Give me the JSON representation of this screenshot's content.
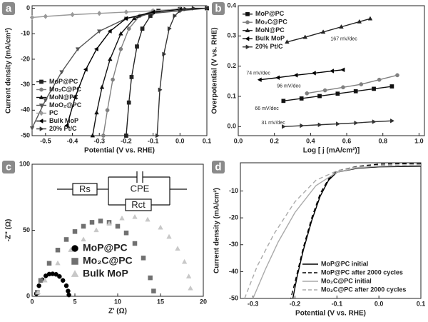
{
  "chart_data": [
    {
      "type": "line",
      "panel_label": "a",
      "x_label": "Potential (V vs. RHE)",
      "y_label": "Current density (mA/cm²)",
      "xlim": [
        -0.55,
        0.1
      ],
      "xticks": [
        -0.5,
        -0.4,
        -0.3,
        -0.2,
        -0.1,
        {
          "value": 0,
          "label": "0.0"
        },
        0.1
      ],
      "ylim": [
        -50,
        1
      ],
      "yticks": [
        0,
        -10,
        -20,
        -30,
        -40,
        -50
      ],
      "legend": "lower-left",
      "series": [
        {
          "name": "MoP@PC",
          "color": "#222222",
          "marker": "square",
          "x": [
            0.1,
            0,
            -0.08,
            -0.11,
            -0.14,
            -0.16,
            -0.18,
            -0.19,
            -0.2
          ],
          "values": [
            0,
            -0.3,
            -1,
            -3,
            -8,
            -15,
            -27,
            -37,
            -50
          ]
        },
        {
          "name": "Mo₂C@PC",
          "color": "#808080",
          "marker": "circle",
          "x": [
            0.1,
            0,
            -0.1,
            -0.15,
            -0.19,
            -0.22,
            -0.25,
            -0.27,
            -0.285
          ],
          "values": [
            0,
            -0.3,
            -1,
            -3,
            -8,
            -16,
            -28,
            -40,
            -50
          ]
        },
        {
          "name": "MoN@PC",
          "color": "#111111",
          "marker": "triangle-up",
          "x": [
            0.1,
            0,
            -0.1,
            -0.17,
            -0.22,
            -0.26,
            -0.29,
            -0.31,
            -0.325
          ],
          "values": [
            0,
            -0.3,
            -1.5,
            -4,
            -10,
            -20,
            -31,
            -41,
            -50
          ]
        },
        {
          "name": "MoO₂@PC",
          "color": "#555555",
          "marker": "triangle-down",
          "x": [
            0.1,
            0,
            -0.1,
            -0.2,
            -0.3,
            -0.38,
            -0.44,
            -0.5,
            -0.55
          ],
          "values": [
            0,
            -1,
            -2,
            -4,
            -9,
            -16,
            -25,
            -36,
            -47
          ]
        },
        {
          "name": "PC",
          "color": "#999999",
          "marker": "diamond",
          "x": [
            0.1,
            0,
            -0.1,
            -0.2,
            -0.3,
            -0.4,
            -0.5,
            -0.55
          ],
          "values": [
            0,
            -0.5,
            -1,
            -1.5,
            -2,
            -2.5,
            -3.2,
            -3.6
          ]
        },
        {
          "name": "Bulk MoP",
          "color": "#000000",
          "marker": "triangle-left",
          "x": [
            0.1,
            0,
            -0.1,
            -0.2,
            -0.26,
            -0.31,
            -0.35,
            -0.39,
            -0.42
          ],
          "values": [
            0,
            -0.5,
            -1.5,
            -4,
            -9,
            -16,
            -24,
            -35,
            -46
          ]
        },
        {
          "name": "20% Pt/C",
          "color": "#333333",
          "marker": "triangle-right",
          "x": [
            0.1,
            0.05,
            0.02,
            0,
            -0.02,
            -0.04,
            -0.06,
            -0.075,
            -0.085
          ],
          "values": [
            0,
            0,
            -0.3,
            -1,
            -3,
            -8,
            -18,
            -32,
            -50
          ]
        }
      ]
    },
    {
      "type": "line",
      "panel_label": "b",
      "x_label": "Log [ j (mA/cm²)]",
      "y_label": "Overpotential (V vs. RHE)",
      "xlim": [
        0,
        1.03
      ],
      "xticks": [
        {
          "value": 0,
          "label": "0.0"
        },
        0.2,
        0.4,
        0.6,
        0.8,
        {
          "value": 1,
          "label": "1.0"
        }
      ],
      "ylim": [
        -0.03,
        0.4
      ],
      "yticks": [
        {
          "value": 0,
          "label": "0.0"
        },
        0.1,
        0.2,
        0.3,
        0.4
      ],
      "legend": "upper-left",
      "series": [
        {
          "name": "MoP@PC",
          "color": "#111111",
          "marker": "square",
          "annotation": "66 mV/dec",
          "x": [
            0.25,
            0.35,
            0.45,
            0.55,
            0.65,
            0.75,
            0.85
          ],
          "values": [
            0.085,
            0.093,
            0.101,
            0.109,
            0.117,
            0.125,
            0.133
          ]
        },
        {
          "name": "Mo₂C@PC",
          "color": "#808080",
          "marker": "circle",
          "annotation": "96 mV/dec",
          "x": [
            0.38,
            0.48,
            0.58,
            0.68,
            0.78,
            0.88
          ],
          "values": [
            0.11,
            0.12,
            0.13,
            0.14,
            0.155,
            0.17
          ]
        },
        {
          "name": "MoN@PC",
          "color": "#222222",
          "marker": "triangle-up",
          "annotation": "167 mV/dec",
          "x": [
            0.27,
            0.37,
            0.47,
            0.57,
            0.67,
            0.73
          ],
          "values": [
            0.28,
            0.296,
            0.313,
            0.33,
            0.347,
            0.357
          ]
        },
        {
          "name": "Bulk MoP",
          "color": "#000000",
          "marker": "triangle-left",
          "annotation": "74 mV/dec",
          "x": [
            0.12,
            0.22,
            0.32,
            0.42,
            0.52,
            0.58
          ],
          "values": [
            0.155,
            0.162,
            0.17,
            0.177,
            0.184,
            0.188
          ]
        },
        {
          "name": "20% Pt/C",
          "color": "#333333",
          "marker": "triangle-right",
          "annotation": "31 mV/dec",
          "x": [
            0.25,
            0.35,
            0.45,
            0.55,
            0.65,
            0.75,
            0.85
          ],
          "values": [
            0,
            0.003,
            0.006,
            0.009,
            0.012,
            0.016,
            0.019
          ]
        }
      ]
    },
    {
      "type": "scatter",
      "panel_label": "c",
      "x_label": "Z' (Ω)",
      "y_label": "-Z'' (Ω)",
      "xlim": [
        0,
        20
      ],
      "xticks": [
        0,
        5,
        10,
        15,
        20
      ],
      "ylim": [
        0,
        100
      ],
      "yticks": [
        0,
        50,
        100
      ],
      "legend": "lower-left",
      "circuit": [
        "Rs",
        "CPE",
        "Rct"
      ],
      "series": [
        {
          "name": "MoP@PC",
          "color": "#000000",
          "marker": "circle",
          "x": [
            0.5,
            0.8,
            1.2,
            1.6,
            2.0,
            2.4,
            2.8,
            3.2,
            3.6,
            4.0,
            4.2,
            4.3
          ],
          "values": [
            2,
            8,
            12.5,
            15.5,
            16.8,
            17,
            16.6,
            15,
            12,
            8,
            4,
            1
          ]
        },
        {
          "name": "Mo₂C@PC",
          "color": "#707070",
          "marker": "square",
          "x": [
            0.6,
            1,
            2,
            3,
            4,
            5,
            6,
            7,
            8,
            9,
            10,
            11,
            12,
            13,
            13.8,
            14.2
          ],
          "values": [
            3,
            12,
            25,
            35,
            43,
            49,
            53,
            56,
            57,
            56,
            53,
            48,
            40,
            29,
            14,
            4
          ]
        },
        {
          "name": "Bulk  MoP",
          "color": "#c8c8c8",
          "marker": "triangle-up",
          "x": [
            0.7,
            1.5,
            3,
            4.5,
            6,
            7.5,
            9,
            10.5,
            12,
            13.5,
            15,
            16,
            17,
            17.8,
            18.3,
            18.5
          ],
          "values": [
            3,
            12,
            25,
            35,
            43,
            50,
            55,
            59,
            60,
            58,
            52,
            45,
            36,
            26,
            15,
            6
          ]
        }
      ]
    },
    {
      "type": "line",
      "panel_label": "d",
      "x_label": "Potential (V vs. RHE)",
      "y_label": "Current density (mA/cm²)",
      "xlim": [
        -0.33,
        0.1
      ],
      "xticks": [
        -0.3,
        -0.2,
        -0.1,
        {
          "value": 0,
          "label": "0.0"
        },
        0.1
      ],
      "ylim": [
        -50,
        0.5
      ],
      "yticks": [
        -10,
        -20,
        -30,
        -40,
        -50
      ],
      "legend": "lower-right",
      "series": [
        {
          "name": "MoP@PC initial",
          "color": "#000000",
          "dash": false,
          "x": [
            0.1,
            0,
            -0.05,
            -0.1,
            -0.12,
            -0.14,
            -0.16,
            -0.18,
            -0.195,
            -0.205
          ],
          "values": [
            -0.8,
            -1,
            -1.5,
            -3,
            -6,
            -12,
            -21,
            -32,
            -42,
            -50
          ]
        },
        {
          "name": "MoP@PC after 2000 cycles",
          "color": "#000000",
          "dash": true,
          "x": [
            0.1,
            0,
            -0.05,
            -0.1,
            -0.12,
            -0.14,
            -0.16,
            -0.18,
            -0.2,
            -0.21
          ],
          "values": [
            0.3,
            0,
            -0.8,
            -2.5,
            -5.5,
            -11,
            -20,
            -31,
            -44,
            -50
          ]
        },
        {
          "name": "Mo₂C@PC initial",
          "color": "#aaaaaa",
          "dash": false,
          "x": [
            0.1,
            0,
            -0.05,
            -0.1,
            -0.15,
            -0.2,
            -0.24,
            -0.27,
            -0.3
          ],
          "values": [
            -0.5,
            -0.8,
            -1.3,
            -3,
            -8,
            -18,
            -29,
            -39,
            -50
          ]
        },
        {
          "name": "Mo₂C@PC after 2000 cycles",
          "color": "#aaaaaa",
          "dash": true,
          "x": [
            0.1,
            0,
            -0.05,
            -0.1,
            -0.15,
            -0.2,
            -0.25,
            -0.29,
            -0.32
          ],
          "values": [
            -0.2,
            -0.5,
            -1,
            -2.5,
            -6,
            -14,
            -26,
            -38,
            -50
          ]
        }
      ]
    }
  ]
}
